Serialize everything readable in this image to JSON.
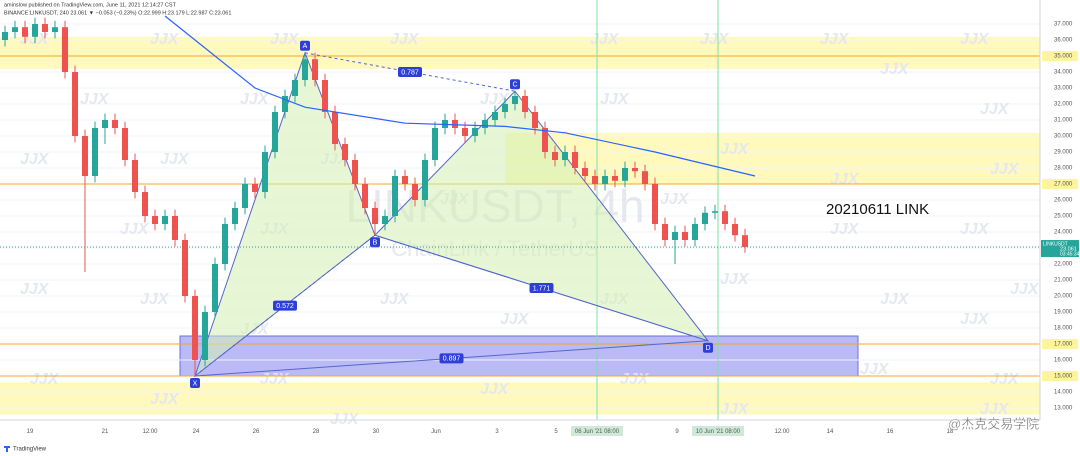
{
  "chart_data": {
    "type": "candlestick",
    "publisher": "aminslow published on TradingView.com, June 11, 2021 12:14:27 CST",
    "title": "BINANCE:LINKUSDT, 240  23.061 ▼ −0.053 (−0.23%)  O:22.999  H:23.179  L:22.987  C:23.061",
    "watermark": "LINKUSDT, 4h",
    "watermark_sub": "ChainLink / TetherUS",
    "logo_mark": "JJX",
    "annotation": "20210611 LINK",
    "footer": "TradingView",
    "credit": "@杰克交易学院",
    "up_color": "#26a69a",
    "down_color": "#ef5350",
    "open": [
      36.0,
      36.5,
      36.8,
      36.2,
      37.0,
      36.5,
      36.8,
      34.0,
      30.0,
      27.5,
      30.5,
      31.0,
      30.5,
      28.5,
      26.5,
      25.0,
      24.5,
      25.0,
      23.5,
      20.0,
      16.0,
      19.0,
      22.0,
      24.5,
      25.5,
      27.0,
      26.5,
      29.0,
      31.5,
      32.5,
      33.5,
      34.8,
      33.5,
      31.5,
      29.5,
      28.5,
      27.0,
      25.5,
      24.5,
      25.0,
      27.5,
      27.0,
      26.0,
      28.5,
      30.5,
      31.0,
      30.5,
      30.0,
      30.5,
      31.0,
      31.5,
      32.0,
      32.5,
      31.5,
      30.5,
      29.0,
      28.5,
      29.0,
      28.0,
      27.5,
      27.0,
      27.5,
      27.2,
      28.0,
      27.8,
      27.0,
      24.5,
      23.5,
      24.0,
      23.5,
      24.5,
      25.2,
      25.3,
      24.5,
      23.8
    ],
    "high": [
      36.9,
      37.2,
      37.2,
      37.4,
      37.4,
      37.2,
      37.2,
      34.4,
      30.4,
      30.9,
      31.4,
      31.4,
      30.9,
      28.9,
      26.9,
      25.4,
      25.4,
      25.4,
      23.9,
      20.4,
      19.4,
      22.4,
      24.9,
      25.9,
      27.4,
      27.4,
      29.4,
      31.9,
      32.9,
      33.9,
      35.2,
      35.2,
      33.9,
      31.9,
      29.9,
      28.9,
      27.4,
      25.9,
      25.4,
      27.9,
      27.9,
      27.4,
      28.9,
      30.9,
      31.4,
      31.4,
      30.9,
      30.9,
      31.4,
      31.9,
      32.4,
      32.8,
      32.9,
      31.9,
      30.9,
      29.4,
      29.4,
      29.4,
      28.4,
      27.9,
      27.9,
      27.9,
      28.4,
      28.4,
      28.2,
      27.4,
      24.9,
      24.4,
      24.4,
      24.9,
      25.6,
      25.7,
      25.7,
      24.9,
      24.2
    ],
    "low": [
      35.6,
      36.1,
      35.8,
      35.8,
      36.1,
      36.1,
      33.6,
      29.6,
      21.5,
      27.1,
      29.5,
      30.1,
      28.1,
      26.1,
      24.6,
      24.1,
      24.1,
      23.1,
      19.6,
      15.0,
      15.6,
      18.6,
      21.6,
      24.1,
      25.1,
      26.1,
      26.1,
      28.6,
      31.1,
      32.1,
      33.1,
      33.1,
      31.1,
      29.1,
      28.1,
      26.6,
      25.1,
      23.8,
      24.1,
      24.6,
      26.6,
      25.6,
      25.6,
      28.1,
      30.1,
      30.1,
      29.6,
      29.6,
      30.1,
      30.6,
      31.1,
      31.6,
      31.1,
      30.1,
      28.6,
      28.1,
      28.1,
      27.6,
      27.1,
      26.6,
      26.6,
      26.8,
      26.8,
      27.4,
      26.6,
      24.1,
      23.1,
      22.0,
      23.1,
      23.1,
      24.1,
      24.8,
      24.1,
      23.4,
      22.7
    ],
    "close": [
      36.5,
      36.8,
      36.2,
      37.0,
      36.5,
      36.8,
      34.0,
      30.0,
      27.5,
      30.5,
      31.0,
      30.5,
      28.5,
      26.5,
      25.0,
      24.5,
      25.0,
      23.5,
      20.0,
      16.0,
      19.0,
      22.0,
      24.5,
      25.5,
      27.0,
      26.5,
      29.0,
      31.5,
      32.5,
      33.5,
      34.8,
      33.5,
      31.5,
      29.5,
      28.5,
      27.0,
      25.5,
      24.5,
      25.0,
      27.5,
      27.0,
      26.0,
      28.5,
      30.5,
      31.0,
      30.5,
      30.0,
      30.5,
      31.0,
      31.5,
      32.0,
      32.5,
      31.5,
      30.5,
      29.0,
      28.5,
      29.0,
      28.0,
      27.5,
      27.0,
      27.5,
      27.2,
      28.0,
      27.8,
      27.0,
      24.5,
      23.5,
      24.0,
      23.5,
      24.5,
      25.2,
      25.3,
      24.5,
      23.8,
      23.06
    ],
    "ma": {
      "color": "#2962ff",
      "x": [
        16,
        20,
        25,
        30,
        40,
        50,
        56,
        65,
        75
      ],
      "values": [
        37.5,
        35.5,
        33.0,
        31.8,
        30.8,
        30.6,
        30.2,
        29.0,
        27.5
      ]
    },
    "pattern": {
      "labels": [
        "X",
        "A",
        "B",
        "C",
        "D"
      ],
      "x": [
        19,
        30,
        37,
        51,
        70.3
      ],
      "y": [
        15.0,
        35.2,
        23.8,
        32.8,
        17.2
      ],
      "ratios": [
        0.787,
        0.572,
        1.771,
        0.897
      ]
    },
    "zones": [
      {
        "low": 34.2,
        "high": 36.2,
        "color": "#fff7a8"
      },
      {
        "low": 27.0,
        "high": 30.2,
        "color": "#fff7a8"
      },
      {
        "low": 12.6,
        "high": 14.6,
        "color": "#fff7a8"
      },
      {
        "low": 15.0,
        "high": 17.5,
        "color": "#8c8cf2"
      }
    ],
    "levels": [
      35,
      27,
      17,
      15
    ],
    "last": {
      "name": "LINKUSDT",
      "value": 23.061,
      "countdown": "03:45:34"
    },
    "xlim": [
      -0.5,
      103.5
    ],
    "xticks": [
      {
        "value": 2.5,
        "label": "19"
      },
      {
        "value": 10,
        "label": "21"
      },
      {
        "value": 14.5,
        "label": "12:00"
      },
      {
        "value": 19.1,
        "label": "24"
      },
      {
        "value": 25.1,
        "label": "26"
      },
      {
        "value": 31.1,
        "label": "28"
      },
      {
        "value": 37.1,
        "label": "30"
      },
      {
        "value": 43.1,
        "label": "Jun"
      },
      {
        "value": 49.2,
        "label": "3"
      },
      {
        "value": 55.1,
        "label": "5"
      },
      {
        "value": 59.2,
        "label": "06 Jun '21  08:00"
      },
      {
        "value": 67.2,
        "label": "9"
      },
      {
        "value": 71.3,
        "label": "10 Jun '21  08:00"
      },
      {
        "value": 77.7,
        "label": "12:00"
      },
      {
        "value": 82.5,
        "label": "14"
      },
      {
        "value": 88.5,
        "label": "16"
      },
      {
        "value": 94.5,
        "label": "18"
      }
    ],
    "ylim": [
      13,
      37
    ],
    "yticks": [
      {
        "value": 13,
        "label": "13.000"
      },
      {
        "value": 14,
        "label": "14.000"
      },
      {
        "value": 15,
        "label": "15.000"
      },
      {
        "value": 16,
        "label": "16.000"
      },
      {
        "value": 17,
        "label": "17.000"
      },
      {
        "value": 18,
        "label": "18.000"
      },
      {
        "value": 19,
        "label": "19.000"
      },
      {
        "value": 20,
        "label": "20.000"
      },
      {
        "value": 21,
        "label": "21.000"
      },
      {
        "value": 22,
        "label": "22.000"
      },
      {
        "value": 23,
        "label": "23.000"
      },
      {
        "value": 24,
        "label": "24.000"
      },
      {
        "value": 25,
        "label": "25.000"
      },
      {
        "value": 26,
        "label": "26.000"
      },
      {
        "value": 27,
        "label": "27.000"
      },
      {
        "value": 28,
        "label": "28.000"
      },
      {
        "value": 29,
        "label": "29.000"
      },
      {
        "value": 30,
        "label": "30.000"
      },
      {
        "value": 31,
        "label": "31.000"
      },
      {
        "value": 32,
        "label": "32.000"
      },
      {
        "value": 33,
        "label": "33.000"
      },
      {
        "value": 34,
        "label": "34.000"
      },
      {
        "value": 35,
        "label": "35.000"
      },
      {
        "value": 36,
        "label": "36.000"
      },
      {
        "value": 37,
        "label": "37.000"
      }
    ]
  }
}
